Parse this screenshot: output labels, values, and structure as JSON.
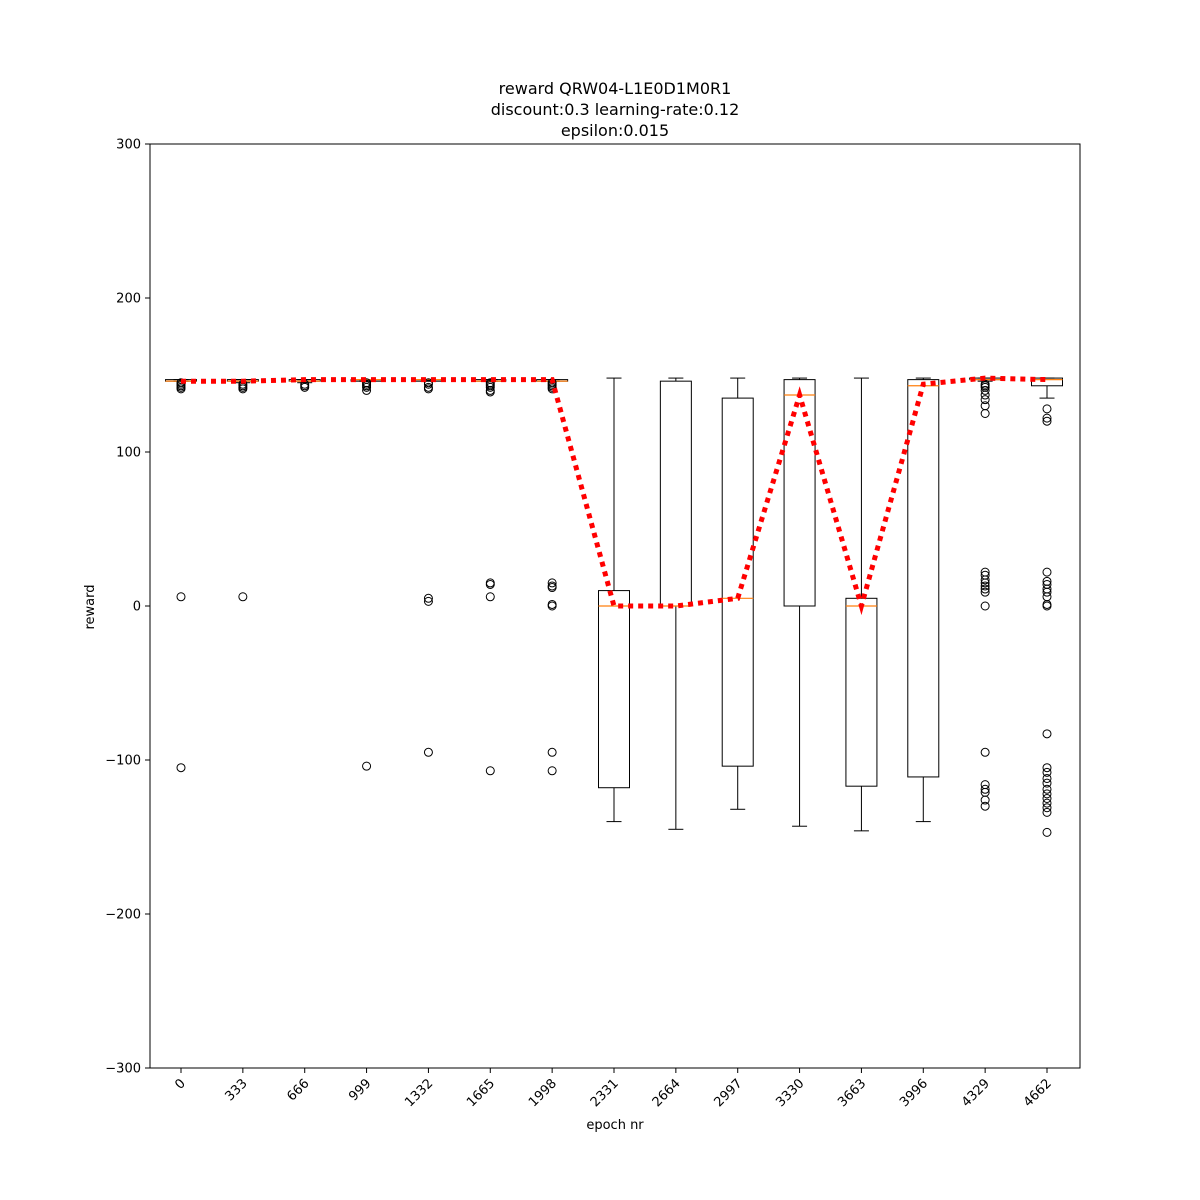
{
  "chart_data": {
    "type": "box",
    "title": [
      "reward QRW04-L1E0D1M0R1",
      "discount:0.3 learning-rate:0.12",
      "epsilon:0.015"
    ],
    "xlabel": "epoch nr",
    "ylabel": "reward",
    "ylim": [
      -300,
      300
    ],
    "yticks": [
      -300,
      -200,
      -100,
      0,
      100,
      200,
      300
    ],
    "yticklabels": [
      "−300",
      "−200",
      "−100",
      "0",
      "100",
      "200",
      "300"
    ],
    "categories": [
      "0",
      "333",
      "666",
      "999",
      "1332",
      "1665",
      "1998",
      "2331",
      "2664",
      "2997",
      "3330",
      "3663",
      "3996",
      "4329",
      "4662"
    ],
    "grid": false,
    "boxes": [
      {
        "whislo": 146,
        "q1": 146,
        "med": 146,
        "q3": 147,
        "whishi": 147,
        "fliers": [
          141,
          142,
          143,
          144,
          145,
          6,
          -105
        ]
      },
      {
        "whislo": 145,
        "q1": 146,
        "med": 146,
        "q3": 147,
        "whishi": 147,
        "fliers": [
          141,
          142,
          143,
          144,
          6
        ]
      },
      {
        "whislo": 145,
        "q1": 146,
        "med": 146,
        "q3": 147,
        "whishi": 147,
        "fliers": [
          142,
          143,
          144
        ]
      },
      {
        "whislo": 146,
        "q1": 146,
        "med": 147,
        "q3": 147,
        "whishi": 147,
        "fliers": [
          140,
          142,
          143,
          144,
          145,
          -104
        ]
      },
      {
        "whislo": 146,
        "q1": 146,
        "med": 147,
        "q3": 147,
        "whishi": 147,
        "fliers": [
          141,
          142,
          144,
          145,
          3,
          5,
          -95
        ]
      },
      {
        "whislo": 146,
        "q1": 146,
        "med": 146,
        "q3": 147,
        "whishi": 147,
        "fliers": [
          139,
          140,
          142,
          143,
          144,
          145,
          14,
          15,
          6,
          -107
        ]
      },
      {
        "whislo": 146,
        "q1": 146,
        "med": 146,
        "q3": 147,
        "whishi": 147,
        "fliers": [
          141,
          142,
          143,
          144,
          145,
          15,
          13,
          12,
          1,
          0,
          -95,
          -107
        ]
      },
      {
        "whislo": -140,
        "q1": -118,
        "med": 0,
        "q3": 10,
        "whishi": 148,
        "fliers": []
      },
      {
        "whislo": -145,
        "q1": 0,
        "med": 0,
        "q3": 146,
        "whishi": 148,
        "fliers": []
      },
      {
        "whislo": -132,
        "q1": -104,
        "med": 5,
        "q3": 135,
        "whishi": 148,
        "fliers": []
      },
      {
        "whislo": -143,
        "q1": 0,
        "med": 137,
        "q3": 147,
        "whishi": 148,
        "fliers": []
      },
      {
        "whislo": -146,
        "q1": -117,
        "med": 0,
        "q3": 5,
        "whishi": 148,
        "fliers": []
      },
      {
        "whislo": -140,
        "q1": -111,
        "med": 143,
        "q3": 147,
        "whishi": 148,
        "fliers": []
      },
      {
        "whislo": 146,
        "q1": 147,
        "med": 147,
        "q3": 148,
        "whishi": 148,
        "fliers": [
          144,
          143,
          142,
          140,
          137,
          134,
          130,
          125,
          22,
          20,
          17,
          15,
          13,
          11,
          9,
          0,
          -95,
          -116,
          -119,
          -121,
          -126,
          -130
        ]
      },
      {
        "whislo": 135,
        "q1": 143,
        "med": 147,
        "q3": 148,
        "whishi": 148,
        "fliers": [
          128,
          122,
          120,
          22,
          16,
          14,
          11,
          9,
          6,
          1,
          0,
          -83,
          -105,
          -108,
          -112,
          -115,
          -119,
          -122,
          -125,
          -128,
          -131,
          -134,
          -147
        ]
      }
    ],
    "mean_line": {
      "color": "#ff0000",
      "style": "dotted",
      "values": [
        146,
        146,
        147,
        147,
        147,
        147,
        147,
        0,
        0,
        5,
        137,
        0,
        144,
        148,
        147
      ]
    },
    "colors": {
      "box": "#000000",
      "median": "#ff7f0e",
      "mean_line": "#ff0000"
    }
  }
}
